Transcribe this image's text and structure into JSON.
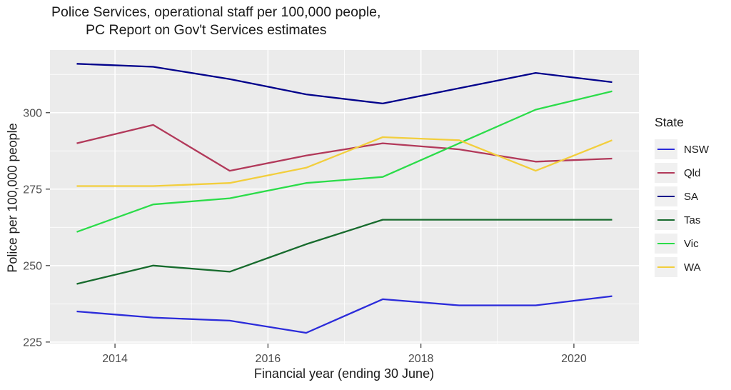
{
  "title": {
    "line1": "Police Services, operational staff per 100,000 people,",
    "line2": "PC Report on Gov't Services estimates"
  },
  "chart_data": {
    "type": "line",
    "title": "Police Services, operational staff per 100,000 people, PC Report on Gov't Services estimates",
    "xlabel": "Financial year (ending 30 June)",
    "ylabel": "Police per 100,000 people",
    "legend_title": "State",
    "legend_position": "right",
    "grid": true,
    "panel_bg": "#EBEBEB",
    "grid_color": "#FFFFFF",
    "tick_label_color": "#4D4D4D",
    "tick_mark_color": "#333333",
    "xlim": [
      2013.15,
      2020.85
    ],
    "ylim": [
      224.5,
      320.5
    ],
    "x": [
      2013.5,
      2014.5,
      2015.5,
      2016.5,
      2017.5,
      2018.5,
      2019.5,
      2020.5
    ],
    "x_ticks": [
      2014,
      2016,
      2018,
      2020
    ],
    "x_tick_labels": [
      "2014",
      "2016",
      "2018",
      "2020"
    ],
    "x_minor_ticks": [
      2015,
      2017,
      2019
    ],
    "y_ticks": [
      225,
      250,
      275,
      300
    ],
    "y_tick_labels": [
      "225",
      "250",
      "275",
      "300"
    ],
    "y_minor_ticks": [
      237.5,
      262.5,
      287.5,
      312.5
    ],
    "series": [
      {
        "name": "NSW",
        "color": "#2B2BDA",
        "values": [
          235,
          233,
          232,
          228,
          239,
          237,
          237,
          240
        ]
      },
      {
        "name": "Qld",
        "color": "#B2395A",
        "values": [
          290,
          296,
          281,
          286,
          290,
          288,
          284,
          285
        ]
      },
      {
        "name": "SA",
        "color": "#00008B",
        "values": [
          316,
          315,
          311,
          306,
          303,
          308,
          313,
          310
        ]
      },
      {
        "name": "Tas",
        "color": "#176B2D",
        "values": [
          244,
          250,
          248,
          257,
          265,
          265,
          265,
          265
        ]
      },
      {
        "name": "Vic",
        "color": "#2BDC49",
        "values": [
          261,
          270,
          272,
          277,
          279,
          290,
          301,
          307
        ]
      },
      {
        "name": "WA",
        "color": "#F2CE3C",
        "values": [
          276,
          276,
          277,
          282,
          292,
          291,
          281,
          291
        ]
      }
    ]
  }
}
